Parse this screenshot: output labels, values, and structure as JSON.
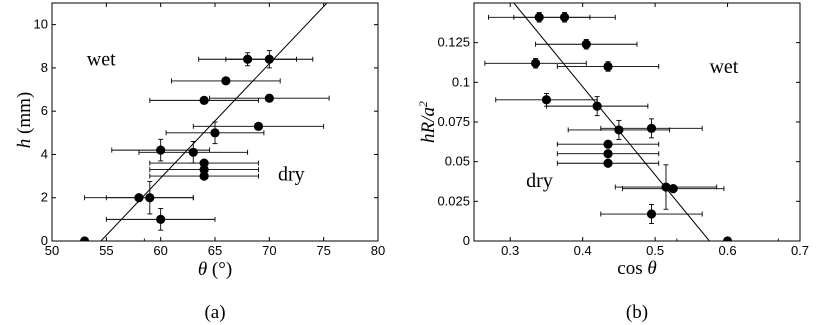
{
  "chart_data": [
    {
      "type": "scatter",
      "panel_label": "(a)",
      "xlabel_symbol": "θ",
      "xlabel_unit": " (°)",
      "ylabel_symbol": "h",
      "ylabel_unit": " (mm)",
      "xlim": [
        50,
        80
      ],
      "ylim": [
        0,
        11
      ],
      "xticks": [
        50,
        55,
        60,
        65,
        70,
        75,
        80
      ],
      "yticks": [
        0,
        2,
        4,
        6,
        8,
        10
      ],
      "grid": false,
      "region_labels": [
        {
          "text": "wet",
          "x": 53.2,
          "y": 8.1
        },
        {
          "text": "dry",
          "x": 70.8,
          "y": 2.8
        }
      ],
      "points": [
        {
          "x": 53.0,
          "y": 0.0,
          "xerr": 5.5,
          "yerr": 0.0
        },
        {
          "x": 58.0,
          "y": 2.0,
          "xerr": 5.0,
          "yerr": 0.0
        },
        {
          "x": 59.0,
          "y": 2.0,
          "xerr": 4.0,
          "yerr": 0.75
        },
        {
          "x": 60.0,
          "y": 1.0,
          "xerr": 5.0,
          "yerr": 0.5
        },
        {
          "x": 60.0,
          "y": 4.2,
          "xerr": 4.5,
          "yerr": 0.5
        },
        {
          "x": 63.0,
          "y": 4.1,
          "xerr": 5.0,
          "yerr": 0.5
        },
        {
          "x": 64.0,
          "y": 3.6,
          "xerr": 5.0,
          "yerr": 0.0
        },
        {
          "x": 64.0,
          "y": 3.3,
          "xerr": 5.0,
          "yerr": 0.0
        },
        {
          "x": 64.0,
          "y": 3.0,
          "xerr": 5.0,
          "yerr": 0.0
        },
        {
          "x": 64.0,
          "y": 6.5,
          "xerr": 5.0,
          "yerr": 0.0
        },
        {
          "x": 65.0,
          "y": 5.0,
          "xerr": 4.5,
          "yerr": 0.5
        },
        {
          "x": 66.0,
          "y": 7.4,
          "xerr": 5.0,
          "yerr": 0.0
        },
        {
          "x": 68.0,
          "y": 8.4,
          "xerr": 4.5,
          "yerr": 0.3
        },
        {
          "x": 69.0,
          "y": 5.3,
          "xerr": 6.0,
          "yerr": 0.0
        },
        {
          "x": 70.0,
          "y": 8.4,
          "xerr": 4.0,
          "yerr": 0.4
        },
        {
          "x": 70.0,
          "y": 6.6,
          "xerr": 5.5,
          "yerr": 0.0
        }
      ],
      "fit_line": [
        {
          "x": 54.5,
          "y": 0.0
        },
        {
          "x": 75.3,
          "y": 11.0
        }
      ],
      "colors": {
        "marker": "#000000",
        "line": "#000000"
      }
    },
    {
      "type": "scatter",
      "panel_label": "(b)",
      "xlabel": "cos θ",
      "ylabel_html": "hR/a²",
      "xlim": [
        0.25,
        0.7
      ],
      "ylim": [
        0,
        0.15
      ],
      "xticks": [
        0.3,
        0.4,
        0.5,
        0.6,
        0.7
      ],
      "yticks": [
        0,
        0.025,
        0.05,
        0.075,
        0.1,
        0.125
      ],
      "grid": false,
      "region_labels": [
        {
          "text": "wet",
          "x": 0.575,
          "y": 0.106
        },
        {
          "text": "dry",
          "x": 0.322,
          "y": 0.034
        }
      ],
      "points": [
        {
          "x": 0.34,
          "y": 0.141,
          "xerr": 0.07,
          "yerr": 0.003
        },
        {
          "x": 0.375,
          "y": 0.141,
          "xerr": 0.07,
          "yerr": 0.003
        },
        {
          "x": 0.335,
          "y": 0.112,
          "xerr": 0.07,
          "yerr": 0.003
        },
        {
          "x": 0.405,
          "y": 0.124,
          "xerr": 0.07,
          "yerr": 0.003
        },
        {
          "x": 0.435,
          "y": 0.11,
          "xerr": 0.07,
          "yerr": 0.003
        },
        {
          "x": 0.35,
          "y": 0.089,
          "xerr": 0.07,
          "yerr": 0.004
        },
        {
          "x": 0.42,
          "y": 0.085,
          "xerr": 0.07,
          "yerr": 0.006
        },
        {
          "x": 0.45,
          "y": 0.07,
          "xerr": 0.07,
          "yerr": 0.006
        },
        {
          "x": 0.495,
          "y": 0.071,
          "xerr": 0.07,
          "yerr": 0.006
        },
        {
          "x": 0.435,
          "y": 0.061,
          "xerr": 0.07,
          "yerr": 0.0
        },
        {
          "x": 0.435,
          "y": 0.055,
          "xerr": 0.07,
          "yerr": 0.0
        },
        {
          "x": 0.435,
          "y": 0.049,
          "xerr": 0.07,
          "yerr": 0.0
        },
        {
          "x": 0.515,
          "y": 0.034,
          "xerr": 0.07,
          "yerr": 0.014
        },
        {
          "x": 0.525,
          "y": 0.033,
          "xerr": 0.07,
          "yerr": 0.0
        },
        {
          "x": 0.495,
          "y": 0.017,
          "xerr": 0.07,
          "yerr": 0.006
        },
        {
          "x": 0.6,
          "y": 0.0,
          "xerr": 0.07,
          "yerr": 0.0
        }
      ],
      "fit_line": [
        {
          "x": 0.305,
          "y": 0.15
        },
        {
          "x": 0.575,
          "y": 0.0
        }
      ],
      "colors": {
        "marker": "#000000",
        "line": "#000000"
      }
    }
  ]
}
